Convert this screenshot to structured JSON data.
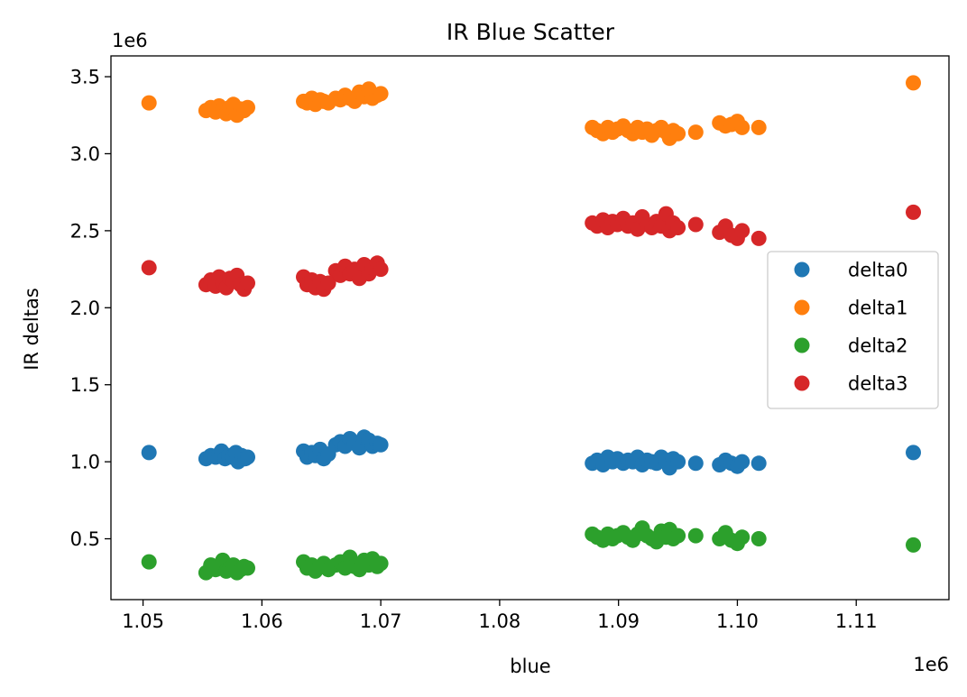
{
  "chart_data": {
    "type": "scatter",
    "title": "IR Blue Scatter",
    "xlabel": "blue",
    "ylabel": "IR deltas",
    "x_offset_text": "1e6",
    "y_offset_text": "1e6",
    "xlim": [
      1.0473,
      1.1178
    ],
    "ylim": [
      0.105,
      3.635
    ],
    "x_ticks": [
      1.05,
      1.06,
      1.07,
      1.08,
      1.09,
      1.1,
      1.11
    ],
    "x_tick_labels": [
      "1.05",
      "1.06",
      "1.07",
      "1.08",
      "1.09",
      "1.10",
      "1.11"
    ],
    "y_ticks": [
      0.5,
      1.0,
      1.5,
      2.0,
      2.5,
      3.0,
      3.5
    ],
    "y_tick_labels": [
      "0.5",
      "1.0",
      "1.5",
      "2.0",
      "2.5",
      "3.0",
      "3.5"
    ],
    "grid": false,
    "legend_position": "center-right",
    "series": [
      {
        "name": "delta0",
        "color": "#1f77b4",
        "points": [
          [
            1.0505,
            1.06
          ],
          [
            1.0553,
            1.02
          ],
          [
            1.0557,
            1.04
          ],
          [
            1.0561,
            1.03
          ],
          [
            1.0564,
            1.05
          ],
          [
            1.0566,
            1.07
          ],
          [
            1.0569,
            1.02
          ],
          [
            1.0572,
            1.04
          ],
          [
            1.0575,
            1.03
          ],
          [
            1.0578,
            1.06
          ],
          [
            1.058,
            1.0
          ],
          [
            1.0583,
            1.04
          ],
          [
            1.0586,
            1.02
          ],
          [
            1.0588,
            1.03
          ],
          [
            1.0635,
            1.07
          ],
          [
            1.0638,
            1.03
          ],
          [
            1.0642,
            1.06
          ],
          [
            1.0645,
            1.04
          ],
          [
            1.0649,
            1.08
          ],
          [
            1.0652,
            1.02
          ],
          [
            1.0656,
            1.05
          ],
          [
            1.0662,
            1.11
          ],
          [
            1.0666,
            1.13
          ],
          [
            1.067,
            1.1
          ],
          [
            1.0674,
            1.15
          ],
          [
            1.0678,
            1.12
          ],
          [
            1.0682,
            1.09
          ],
          [
            1.0686,
            1.16
          ],
          [
            1.069,
            1.14
          ],
          [
            1.0693,
            1.1
          ],
          [
            1.0697,
            1.12
          ],
          [
            1.07,
            1.11
          ],
          [
            1.0878,
            0.99
          ],
          [
            1.0882,
            1.01
          ],
          [
            1.0887,
            0.98
          ],
          [
            1.0891,
            1.03
          ],
          [
            1.0895,
            1.0
          ],
          [
            1.0899,
            1.02
          ],
          [
            1.0904,
            0.99
          ],
          [
            1.0908,
            1.01
          ],
          [
            1.0912,
            1.0
          ],
          [
            1.0916,
            1.03
          ],
          [
            1.092,
            0.98
          ],
          [
            1.0924,
            1.01
          ],
          [
            1.0928,
            1.0
          ],
          [
            1.0932,
            0.99
          ],
          [
            1.0936,
            1.03
          ],
          [
            1.094,
            1.01
          ],
          [
            1.0943,
            0.96
          ],
          [
            1.0946,
            1.02
          ],
          [
            1.095,
            1.0
          ],
          [
            1.0965,
            0.99
          ],
          [
            1.0985,
            0.98
          ],
          [
            1.099,
            1.01
          ],
          [
            1.0995,
            0.99
          ],
          [
            1.1,
            0.97
          ],
          [
            1.1004,
            1.0
          ],
          [
            1.1018,
            0.99
          ],
          [
            1.1148,
            1.06
          ]
        ]
      },
      {
        "name": "delta1",
        "color": "#ff7f0e",
        "points": [
          [
            1.0505,
            3.33
          ],
          [
            1.0553,
            3.28
          ],
          [
            1.0557,
            3.3
          ],
          [
            1.0561,
            3.27
          ],
          [
            1.0564,
            3.31
          ],
          [
            1.0567,
            3.29
          ],
          [
            1.057,
            3.26
          ],
          [
            1.0573,
            3.3
          ],
          [
            1.0576,
            3.32
          ],
          [
            1.0579,
            3.25
          ],
          [
            1.0582,
            3.29
          ],
          [
            1.0585,
            3.28
          ],
          [
            1.0588,
            3.3
          ],
          [
            1.0635,
            3.34
          ],
          [
            1.0638,
            3.33
          ],
          [
            1.0642,
            3.36
          ],
          [
            1.0645,
            3.32
          ],
          [
            1.0649,
            3.35
          ],
          [
            1.0652,
            3.34
          ],
          [
            1.0656,
            3.33
          ],
          [
            1.0662,
            3.36
          ],
          [
            1.0666,
            3.35
          ],
          [
            1.067,
            3.38
          ],
          [
            1.0674,
            3.36
          ],
          [
            1.0678,
            3.34
          ],
          [
            1.0682,
            3.4
          ],
          [
            1.0686,
            3.37
          ],
          [
            1.069,
            3.42
          ],
          [
            1.0693,
            3.36
          ],
          [
            1.0697,
            3.38
          ],
          [
            1.07,
            3.39
          ],
          [
            1.0878,
            3.17
          ],
          [
            1.0882,
            3.15
          ],
          [
            1.0887,
            3.13
          ],
          [
            1.0891,
            3.17
          ],
          [
            1.0895,
            3.14
          ],
          [
            1.0899,
            3.16
          ],
          [
            1.0904,
            3.18
          ],
          [
            1.0908,
            3.15
          ],
          [
            1.0912,
            3.13
          ],
          [
            1.0916,
            3.17
          ],
          [
            1.092,
            3.14
          ],
          [
            1.0924,
            3.16
          ],
          [
            1.0928,
            3.12
          ],
          [
            1.0932,
            3.15
          ],
          [
            1.0936,
            3.17
          ],
          [
            1.094,
            3.14
          ],
          [
            1.0943,
            3.1
          ],
          [
            1.0946,
            3.15
          ],
          [
            1.095,
            3.13
          ],
          [
            1.0965,
            3.14
          ],
          [
            1.0985,
            3.2
          ],
          [
            1.099,
            3.18
          ],
          [
            1.0995,
            3.19
          ],
          [
            1.1,
            3.21
          ],
          [
            1.1004,
            3.17
          ],
          [
            1.1018,
            3.17
          ],
          [
            1.1148,
            3.46
          ]
        ]
      },
      {
        "name": "delta2",
        "color": "#2ca02c",
        "points": [
          [
            1.0505,
            0.35
          ],
          [
            1.0553,
            0.28
          ],
          [
            1.0557,
            0.33
          ],
          [
            1.0561,
            0.3
          ],
          [
            1.0564,
            0.32
          ],
          [
            1.0567,
            0.36
          ],
          [
            1.057,
            0.29
          ],
          [
            1.0573,
            0.31
          ],
          [
            1.0576,
            0.33
          ],
          [
            1.0579,
            0.28
          ],
          [
            1.0582,
            0.3
          ],
          [
            1.0585,
            0.32
          ],
          [
            1.0588,
            0.31
          ],
          [
            1.0635,
            0.35
          ],
          [
            1.0638,
            0.31
          ],
          [
            1.0642,
            0.33
          ],
          [
            1.0645,
            0.29
          ],
          [
            1.0649,
            0.32
          ],
          [
            1.0652,
            0.34
          ],
          [
            1.0656,
            0.3
          ],
          [
            1.0662,
            0.33
          ],
          [
            1.0666,
            0.35
          ],
          [
            1.067,
            0.31
          ],
          [
            1.0674,
            0.38
          ],
          [
            1.0678,
            0.32
          ],
          [
            1.0682,
            0.3
          ],
          [
            1.0686,
            0.36
          ],
          [
            1.069,
            0.33
          ],
          [
            1.0693,
            0.37
          ],
          [
            1.0697,
            0.32
          ],
          [
            1.07,
            0.34
          ],
          [
            1.0878,
            0.53
          ],
          [
            1.0882,
            0.51
          ],
          [
            1.0887,
            0.49
          ],
          [
            1.0891,
            0.53
          ],
          [
            1.0895,
            0.5
          ],
          [
            1.0899,
            0.52
          ],
          [
            1.0904,
            0.54
          ],
          [
            1.0908,
            0.51
          ],
          [
            1.0912,
            0.49
          ],
          [
            1.0916,
            0.53
          ],
          [
            1.092,
            0.57
          ],
          [
            1.0924,
            0.52
          ],
          [
            1.0928,
            0.5
          ],
          [
            1.0932,
            0.48
          ],
          [
            1.0936,
            0.55
          ],
          [
            1.094,
            0.51
          ],
          [
            1.0943,
            0.56
          ],
          [
            1.0946,
            0.5
          ],
          [
            1.095,
            0.52
          ],
          [
            1.0965,
            0.52
          ],
          [
            1.0985,
            0.5
          ],
          [
            1.099,
            0.54
          ],
          [
            1.0995,
            0.49
          ],
          [
            1.1,
            0.47
          ],
          [
            1.1004,
            0.51
          ],
          [
            1.1018,
            0.5
          ],
          [
            1.1148,
            0.46
          ]
        ]
      },
      {
        "name": "delta3",
        "color": "#d62728",
        "points": [
          [
            1.0505,
            2.26
          ],
          [
            1.0553,
            2.15
          ],
          [
            1.0557,
            2.18
          ],
          [
            1.0561,
            2.14
          ],
          [
            1.0564,
            2.2
          ],
          [
            1.0567,
            2.16
          ],
          [
            1.057,
            2.13
          ],
          [
            1.0573,
            2.19
          ],
          [
            1.0576,
            2.17
          ],
          [
            1.0579,
            2.21
          ],
          [
            1.0582,
            2.15
          ],
          [
            1.0585,
            2.12
          ],
          [
            1.0588,
            2.16
          ],
          [
            1.0635,
            2.2
          ],
          [
            1.0638,
            2.15
          ],
          [
            1.0642,
            2.18
          ],
          [
            1.0645,
            2.13
          ],
          [
            1.0649,
            2.17
          ],
          [
            1.0652,
            2.12
          ],
          [
            1.0656,
            2.16
          ],
          [
            1.0662,
            2.24
          ],
          [
            1.0666,
            2.21
          ],
          [
            1.067,
            2.27
          ],
          [
            1.0674,
            2.22
          ],
          [
            1.0678,
            2.25
          ],
          [
            1.0682,
            2.19
          ],
          [
            1.0686,
            2.28
          ],
          [
            1.069,
            2.22
          ],
          [
            1.0693,
            2.26
          ],
          [
            1.0697,
            2.29
          ],
          [
            1.07,
            2.25
          ],
          [
            1.0878,
            2.55
          ],
          [
            1.0882,
            2.53
          ],
          [
            1.0887,
            2.57
          ],
          [
            1.0891,
            2.52
          ],
          [
            1.0895,
            2.56
          ],
          [
            1.0899,
            2.54
          ],
          [
            1.0904,
            2.58
          ],
          [
            1.0908,
            2.53
          ],
          [
            1.0912,
            2.55
          ],
          [
            1.0916,
            2.51
          ],
          [
            1.092,
            2.59
          ],
          [
            1.0924,
            2.54
          ],
          [
            1.0928,
            2.52
          ],
          [
            1.0932,
            2.56
          ],
          [
            1.0936,
            2.53
          ],
          [
            1.094,
            2.61
          ],
          [
            1.0943,
            2.5
          ],
          [
            1.0946,
            2.55
          ],
          [
            1.095,
            2.52
          ],
          [
            1.0965,
            2.54
          ],
          [
            1.0985,
            2.49
          ],
          [
            1.099,
            2.53
          ],
          [
            1.0995,
            2.47
          ],
          [
            1.1,
            2.45
          ],
          [
            1.1004,
            2.5
          ],
          [
            1.1018,
            2.45
          ],
          [
            1.1148,
            2.62
          ]
        ]
      }
    ]
  }
}
